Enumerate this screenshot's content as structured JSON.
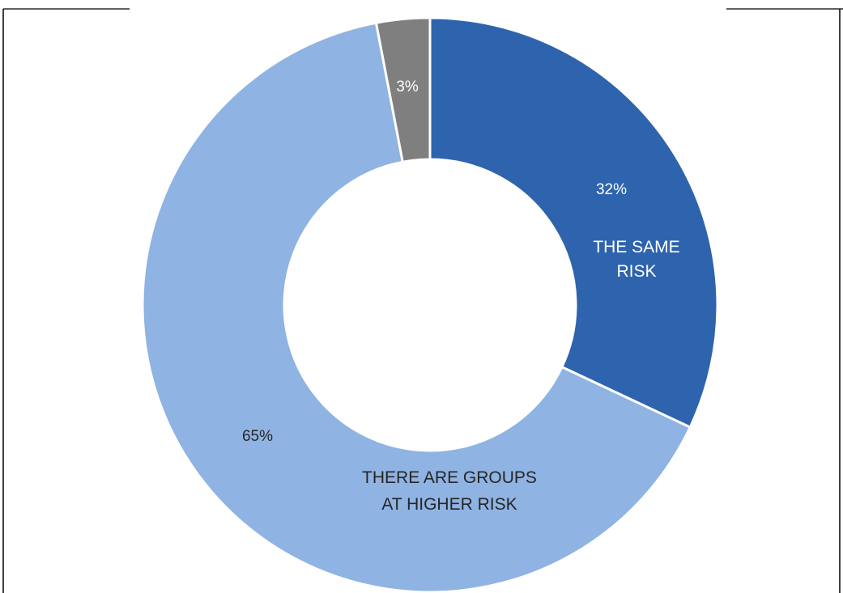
{
  "chart_data": {
    "type": "pie",
    "variant": "donut",
    "start_angle_deg": 0,
    "direction": "clockwise",
    "slices": [
      {
        "label": "THE SAME RISK",
        "value": 32,
        "value_label": "32%",
        "color": "#2e64ae",
        "label_color": "#ffffff",
        "value_color": "#ffffff"
      },
      {
        "label": "THERE ARE GROUPS AT HIGHER RISK",
        "value": 65,
        "value_label": "65%",
        "color": "#8fb3e2",
        "label_color": "#262626",
        "value_color": "#262626"
      },
      {
        "label": "",
        "value": 3,
        "value_label": "3%",
        "color": "#7f7f7f",
        "label_color": "#ffffff",
        "value_color": "#ffffff"
      }
    ],
    "legend": "none"
  },
  "colors": {
    "background": "#ffffff",
    "frame": "#000000",
    "separator": "#ffffff"
  }
}
